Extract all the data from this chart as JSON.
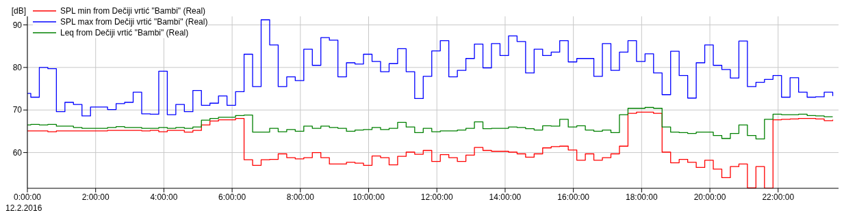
{
  "chart_data": {
    "type": "step",
    "ylabel": "[dB]",
    "annotations": [
      "12.2.2016"
    ],
    "x": [
      0,
      0.1,
      0.35,
      0.6,
      0.85,
      1.1,
      1.35,
      1.6,
      1.85,
      2.1,
      2.35,
      2.6,
      2.85,
      3.1,
      3.35,
      3.6,
      3.85,
      4.1,
      4.35,
      4.6,
      4.85,
      5.1,
      5.35,
      5.6,
      5.85,
      6.1,
      6.35,
      6.6,
      6.85,
      7.1,
      7.35,
      7.6,
      7.85,
      8.1,
      8.35,
      8.6,
      8.85,
      9.1,
      9.35,
      9.6,
      9.85,
      10.1,
      10.35,
      10.6,
      10.85,
      11.1,
      11.35,
      11.6,
      11.85,
      12.1,
      12.35,
      12.6,
      12.85,
      13.1,
      13.35,
      13.6,
      13.85,
      14.1,
      14.35,
      14.6,
      14.85,
      15.1,
      15.35,
      15.6,
      15.85,
      16.1,
      16.35,
      16.6,
      16.85,
      17.1,
      17.35,
      17.6,
      17.85,
      18.1,
      18.35,
      18.6,
      18.85,
      19.1,
      19.35,
      19.6,
      19.85,
      20.1,
      20.35,
      20.6,
      20.85,
      21.1,
      21.35,
      21.6,
      21.85,
      22.1,
      22.35,
      22.6,
      22.85,
      23.1,
      23.35,
      23.6
    ],
    "series": [
      {
        "name": "SPL min from Dečiji vrtić \"Bambi\" (Real)",
        "color": "#ff0000",
        "values": [
          65.1,
          65.1,
          65.1,
          64.9,
          65.1,
          65.1,
          65.1,
          65.1,
          65.1,
          65.1,
          65.2,
          65.2,
          65.2,
          65.2,
          65.1,
          65.2,
          64.9,
          65.2,
          65.2,
          64.8,
          65.2,
          66.5,
          67.4,
          67.7,
          67.7,
          68.0,
          58.3,
          57.0,
          58.3,
          58.4,
          59.7,
          58.8,
          58.5,
          58.8,
          60.0,
          58.8,
          57.3,
          57.3,
          57.7,
          57.5,
          57.0,
          59.2,
          58.8,
          57.1,
          59.1,
          60.1,
          59.6,
          60.5,
          57.9,
          59.5,
          58.8,
          57.9,
          59.4,
          61.2,
          60.5,
          60.3,
          60.3,
          60.1,
          59.7,
          58.9,
          59.7,
          61.1,
          61.4,
          61.5,
          60.6,
          58.2,
          59.7,
          58.2,
          58.8,
          59.7,
          61.5,
          69.2,
          69.5,
          69.5,
          69.2,
          60.1,
          57.6,
          58.4,
          57.7,
          56.5,
          58.2,
          56.1,
          54.1,
          56.7,
          57.3,
          51.7,
          56.7,
          51.6,
          67.7,
          67.8,
          67.9,
          68.0,
          68.0,
          67.9,
          67.5,
          67.7
        ]
      },
      {
        "name": "SPL max from Dečiji vrtić \"Bambi\" (Real)",
        "color": "#0000ff",
        "values": [
          73.9,
          73.0,
          80.0,
          79.7,
          69.6,
          71.8,
          71.3,
          68.6,
          70.7,
          70.7,
          70.1,
          71.5,
          71.8,
          74.2,
          69.1,
          69.0,
          79.1,
          68.9,
          71.3,
          69.6,
          74.6,
          71.1,
          71.6,
          73.3,
          71.1,
          74.3,
          83.1,
          75.5,
          91.2,
          85.3,
          75.5,
          77.8,
          76.9,
          84.3,
          80.5,
          87.0,
          86.4,
          77.8,
          81.1,
          80.8,
          83.1,
          81.4,
          79.0,
          80.9,
          84.4,
          79.0,
          72.7,
          77.9,
          83.9,
          86.3,
          77.8,
          79.3,
          82.1,
          85.5,
          79.9,
          85.6,
          82.8,
          87.4,
          86.1,
          78.7,
          84.3,
          82.8,
          83.6,
          86.3,
          81.3,
          82.1,
          82.1,
          77.9,
          85.6,
          79.3,
          83.6,
          86.3,
          81.4,
          83.2,
          78.7,
          73.6,
          83.8,
          78.1,
          72.8,
          81.1,
          85.3,
          80.5,
          79.5,
          77.5,
          86.2,
          75.5,
          76.5,
          77.2,
          78.1,
          73.0,
          77.6,
          74.2,
          73.0,
          73.1,
          74.2,
          73.3
        ]
      },
      {
        "name": "Leq from Dečiji vrtić \"Bambi\" (Real)",
        "color": "#008000",
        "values": [
          66.5,
          66.6,
          66.5,
          66.6,
          66.2,
          66.2,
          65.9,
          65.7,
          65.7,
          65.7,
          65.9,
          66.1,
          65.9,
          65.9,
          65.7,
          65.7,
          65.9,
          65.7,
          65.9,
          65.7,
          66.0,
          67.6,
          68.0,
          68.3,
          68.3,
          68.7,
          68.8,
          64.8,
          64.8,
          65.7,
          64.9,
          65.4,
          65.0,
          66.2,
          65.7,
          66.2,
          65.9,
          65.7,
          65.0,
          65.3,
          65.4,
          65.9,
          65.4,
          65.7,
          67.1,
          66.0,
          64.7,
          65.7,
          64.9,
          65.1,
          65.1,
          65.3,
          65.7,
          67.2,
          65.6,
          65.7,
          65.7,
          66.0,
          65.9,
          65.6,
          65.3,
          66.3,
          66.2,
          67.8,
          66.0,
          66.3,
          65.3,
          65.0,
          65.3,
          64.7,
          68.9,
          70.4,
          70.4,
          70.6,
          70.4,
          66.0,
          64.8,
          64.7,
          64.5,
          64.8,
          64.8,
          64.0,
          63.3,
          64.5,
          66.5,
          64.0,
          63.2,
          67.8,
          69.0,
          68.9,
          68.9,
          69.0,
          68.7,
          68.6,
          68.4,
          68.4
        ]
      }
    ],
    "xlim": [
      0,
      23.77
    ],
    "xticks": [
      {
        "value": 0,
        "label": "0:00:00"
      },
      {
        "value": 2,
        "label": "2:00:00"
      },
      {
        "value": 4,
        "label": "4:00:00"
      },
      {
        "value": 6,
        "label": "6:00:00"
      },
      {
        "value": 8,
        "label": "8:00:00"
      },
      {
        "value": 10,
        "label": "10:00:00"
      },
      {
        "value": 12,
        "label": "12:00:00"
      },
      {
        "value": 14,
        "label": "14:00:00"
      },
      {
        "value": 16,
        "label": "16:00:00"
      },
      {
        "value": 18,
        "label": "18:00:00"
      },
      {
        "value": 20,
        "label": "20:00:00"
      },
      {
        "value": 22,
        "label": "22:00:00"
      }
    ],
    "ylim": [
      51.6,
      92
    ],
    "yticks": [
      60,
      70,
      80,
      90
    ],
    "grid": true,
    "legend": "top left",
    "line_style": "solid"
  }
}
